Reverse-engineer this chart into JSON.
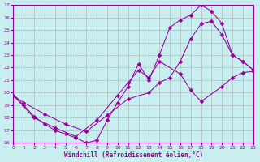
{
  "xlabel": "Windchill (Refroidissement éolien,°C)",
  "bg_color": "#c8eef0",
  "line_color": "#990099",
  "grid_color": "#b0b0b0",
  "xlim": [
    0,
    23
  ],
  "ylim": [
    16,
    27
  ],
  "xticks": [
    0,
    1,
    2,
    3,
    4,
    5,
    6,
    7,
    8,
    9,
    10,
    11,
    12,
    13,
    14,
    15,
    16,
    17,
    18,
    19,
    20,
    21,
    22,
    23
  ],
  "yticks": [
    16,
    17,
    18,
    19,
    20,
    21,
    22,
    23,
    24,
    25,
    26,
    27
  ],
  "line1_x": [
    0,
    1,
    2,
    3,
    4,
    5,
    6,
    7,
    8,
    9,
    10,
    11,
    12,
    13,
    14,
    15,
    16,
    17,
    18,
    19,
    20,
    21,
    22,
    23
  ],
  "line1_y": [
    19.8,
    19.0,
    18.1,
    17.5,
    17.0,
    16.7,
    16.4,
    16.0,
    16.2,
    17.8,
    19.2,
    20.5,
    22.3,
    21.0,
    23.0,
    25.2,
    25.8,
    26.2,
    27.0,
    26.5,
    25.5,
    23.0,
    22.5,
    21.8
  ],
  "line2_x": [
    0,
    1,
    3,
    5,
    7,
    9,
    11,
    13,
    14,
    15,
    16,
    17,
    18,
    19,
    20,
    21,
    22,
    23
  ],
  "line2_y": [
    19.8,
    19.2,
    18.3,
    17.5,
    16.9,
    18.2,
    19.5,
    20.0,
    20.8,
    21.2,
    22.5,
    24.3,
    25.5,
    25.7,
    24.6,
    23.0,
    22.5,
    21.8
  ],
  "line3_x": [
    0,
    2,
    4,
    6,
    8,
    10,
    11,
    12,
    13,
    14,
    16,
    17,
    18,
    20,
    21,
    22,
    23
  ],
  "line3_y": [
    19.8,
    18.0,
    17.2,
    16.5,
    17.8,
    19.8,
    20.8,
    21.8,
    21.2,
    22.5,
    21.5,
    20.2,
    19.3,
    20.5,
    21.2,
    21.6,
    21.7
  ]
}
